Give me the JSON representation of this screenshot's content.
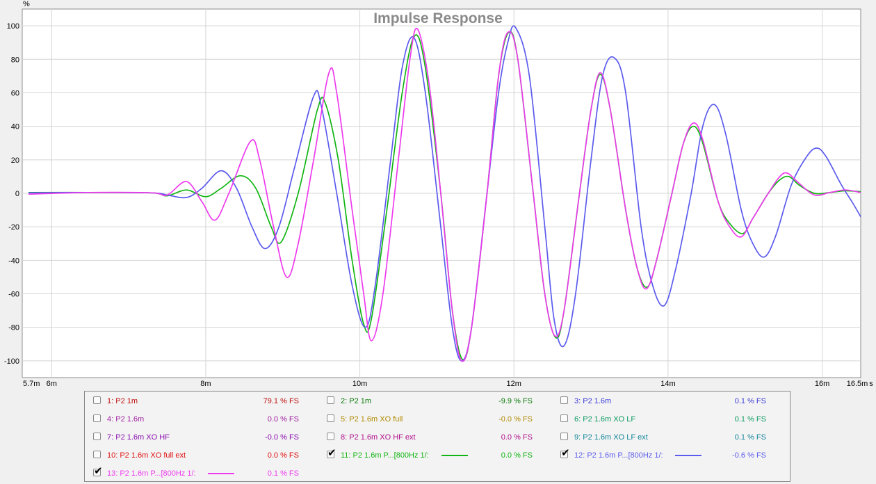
{
  "chart_data": {
    "type": "line",
    "title": "Impulse Response",
    "ylabel": "%",
    "xlabel": "s",
    "xlim": [
      5.7,
      16.5
    ],
    "ylim": [
      -110,
      110
    ],
    "grid": true,
    "y_ticks": [
      "100",
      "80",
      "60",
      "40",
      "20",
      "0",
      "-20",
      "-40",
      "-60",
      "-80",
      "-100"
    ],
    "x_ticks": [
      "5.7m",
      "6m",
      "8m",
      "10m",
      "12m",
      "14m",
      "16m",
      "16.5m"
    ],
    "x_unit_label": "s",
    "series": [
      {
        "name": "11: P2 1.6m P...[800Hz 1/:",
        "color": "#12b512",
        "points": [
          [
            5.7,
            0.5
          ],
          [
            6.5,
            0.5
          ],
          [
            7.3,
            0.3
          ],
          [
            7.5,
            -1.5
          ],
          [
            7.75,
            2
          ],
          [
            8.0,
            -2
          ],
          [
            8.2,
            3
          ],
          [
            8.45,
            10.5
          ],
          [
            8.65,
            3
          ],
          [
            8.85,
            -20
          ],
          [
            8.98,
            -29
          ],
          [
            9.2,
            0
          ],
          [
            9.45,
            50
          ],
          [
            9.55,
            54
          ],
          [
            9.72,
            20
          ],
          [
            9.9,
            -40
          ],
          [
            10.05,
            -78
          ],
          [
            10.15,
            -75
          ],
          [
            10.35,
            -10
          ],
          [
            10.55,
            60
          ],
          [
            10.71,
            94
          ],
          [
            10.85,
            75
          ],
          [
            11.05,
            0
          ],
          [
            11.2,
            -70
          ],
          [
            11.33,
            -99
          ],
          [
            11.45,
            -80
          ],
          [
            11.65,
            0
          ],
          [
            11.8,
            70
          ],
          [
            11.93,
            96
          ],
          [
            12.05,
            80
          ],
          [
            12.25,
            0
          ],
          [
            12.4,
            -60
          ],
          [
            12.54,
            -86
          ],
          [
            12.65,
            -70
          ],
          [
            12.85,
            0
          ],
          [
            13.0,
            50
          ],
          [
            13.12,
            71
          ],
          [
            13.25,
            50
          ],
          [
            13.45,
            -10
          ],
          [
            13.6,
            -45
          ],
          [
            13.73,
            -56
          ],
          [
            13.85,
            -40
          ],
          [
            14.05,
            0
          ],
          [
            14.2,
            30
          ],
          [
            14.33,
            40
          ],
          [
            14.45,
            30
          ],
          [
            14.65,
            -5
          ],
          [
            14.8,
            -18
          ],
          [
            14.97,
            -24
          ],
          [
            15.1,
            -15
          ],
          [
            15.3,
            0
          ],
          [
            15.45,
            8
          ],
          [
            15.57,
            10
          ],
          [
            15.7,
            5
          ],
          [
            15.9,
            0
          ],
          [
            16.1,
            0.5
          ],
          [
            16.3,
            1.5
          ],
          [
            16.5,
            1
          ]
        ]
      },
      {
        "name": "12: P2 1.6m P...[800Hz 1/:",
        "color": "#5b5bee",
        "points": [
          [
            5.7,
            0.3
          ],
          [
            6.5,
            0.5
          ],
          [
            7.3,
            0.3
          ],
          [
            7.5,
            -1
          ],
          [
            7.75,
            -2.5
          ],
          [
            7.95,
            3
          ],
          [
            8.2,
            13.5
          ],
          [
            8.4,
            3
          ],
          [
            8.6,
            -20
          ],
          [
            8.77,
            -33
          ],
          [
            8.95,
            -20
          ],
          [
            9.15,
            15
          ],
          [
            9.4,
            58
          ],
          [
            9.5,
            52
          ],
          [
            9.7,
            0
          ],
          [
            9.9,
            -55
          ],
          [
            10.07,
            -80
          ],
          [
            10.2,
            -55
          ],
          [
            10.4,
            20
          ],
          [
            10.55,
            75
          ],
          [
            10.7,
            93
          ],
          [
            10.85,
            60
          ],
          [
            11.05,
            -20
          ],
          [
            11.2,
            -80
          ],
          [
            11.32,
            -100
          ],
          [
            11.45,
            -80
          ],
          [
            11.65,
            0
          ],
          [
            11.8,
            60
          ],
          [
            11.92,
            90
          ],
          [
            12.02,
            99
          ],
          [
            12.2,
            70
          ],
          [
            12.4,
            -20
          ],
          [
            12.52,
            -75
          ],
          [
            12.65,
            -91
          ],
          [
            12.8,
            -60
          ],
          [
            13.0,
            20
          ],
          [
            13.15,
            70
          ],
          [
            13.3,
            81
          ],
          [
            13.45,
            60
          ],
          [
            13.65,
            -20
          ],
          [
            13.8,
            -55
          ],
          [
            13.95,
            -67
          ],
          [
            14.1,
            -45
          ],
          [
            14.3,
            0
          ],
          [
            14.45,
            40
          ],
          [
            14.6,
            53
          ],
          [
            14.75,
            35
          ],
          [
            14.95,
            -10
          ],
          [
            15.1,
            -30
          ],
          [
            15.25,
            -38
          ],
          [
            15.4,
            -25
          ],
          [
            15.6,
            5
          ],
          [
            15.8,
            22
          ],
          [
            15.93,
            27
          ],
          [
            16.05,
            22
          ],
          [
            16.25,
            5
          ],
          [
            16.4,
            -6
          ],
          [
            16.5,
            -14
          ]
        ]
      },
      {
        "name": "13: P2 1.6m P...[800Hz 1/:",
        "color": "#ee3aee",
        "points": [
          [
            5.7,
            -0.5
          ],
          [
            6.5,
            0.5
          ],
          [
            7.3,
            0.3
          ],
          [
            7.5,
            -1
          ],
          [
            7.75,
            7
          ],
          [
            7.95,
            -5
          ],
          [
            8.12,
            -16
          ],
          [
            8.3,
            0
          ],
          [
            8.58,
            31
          ],
          [
            8.7,
            20
          ],
          [
            8.88,
            -20
          ],
          [
            9.05,
            -50
          ],
          [
            9.2,
            -30
          ],
          [
            9.4,
            20
          ],
          [
            9.6,
            72
          ],
          [
            9.7,
            60
          ],
          [
            9.9,
            -10
          ],
          [
            10.05,
            -60
          ],
          [
            10.15,
            -88
          ],
          [
            10.3,
            -60
          ],
          [
            10.5,
            20
          ],
          [
            10.65,
            80
          ],
          [
            10.75,
            98
          ],
          [
            10.9,
            65
          ],
          [
            11.05,
            0
          ],
          [
            11.2,
            -70
          ],
          [
            11.32,
            -100
          ],
          [
            11.45,
            -80
          ],
          [
            11.65,
            0
          ],
          [
            11.8,
            70
          ],
          [
            11.92,
            96
          ],
          [
            12.05,
            80
          ],
          [
            12.25,
            0
          ],
          [
            12.4,
            -60
          ],
          [
            12.53,
            -85
          ],
          [
            12.65,
            -70
          ],
          [
            12.85,
            0
          ],
          [
            13.0,
            50
          ],
          [
            13.12,
            72
          ],
          [
            13.25,
            50
          ],
          [
            13.45,
            -10
          ],
          [
            13.6,
            -45
          ],
          [
            13.72,
            -57
          ],
          [
            13.85,
            -40
          ],
          [
            14.05,
            0
          ],
          [
            14.2,
            30
          ],
          [
            14.33,
            42
          ],
          [
            14.45,
            32
          ],
          [
            14.65,
            -5
          ],
          [
            14.8,
            -20
          ],
          [
            14.95,
            -26
          ],
          [
            15.1,
            -15
          ],
          [
            15.3,
            0
          ],
          [
            15.45,
            10
          ],
          [
            15.55,
            12
          ],
          [
            15.7,
            6
          ],
          [
            15.9,
            -1
          ],
          [
            16.1,
            0.5
          ],
          [
            16.3,
            2
          ],
          [
            16.5,
            0.5
          ]
        ]
      }
    ]
  },
  "legend": {
    "items": [
      {
        "label": "1: P2 1m",
        "value": "79.1 % FS",
        "color": "#c01010",
        "checked": false
      },
      {
        "label": "2: P2 1m",
        "value": "-9.9 % FS",
        "color": "#0b7a0b",
        "checked": false
      },
      {
        "label": "3: P2 1.6m",
        "value": "0.1 % FS",
        "color": "#3a3ad8",
        "checked": false
      },
      {
        "label": "4: P2 1.6m",
        "value": "0.0 % FS",
        "color": "#a020a0",
        "checked": false
      },
      {
        "label": "5: P2 1.6m XO full",
        "value": "-0.0 % FS",
        "color": "#b08a00",
        "checked": false
      },
      {
        "label": "6: P2 1.6m XO LF",
        "value": "0.1 % FS",
        "color": "#0b9a60",
        "checked": false
      },
      {
        "label": "7: P2 1.6m XO HF",
        "value": "-0.0 % FS",
        "color": "#8a10b0",
        "checked": false
      },
      {
        "label": "8: P2 1.6m XO HF ext",
        "value": "0.0 % FS",
        "color": "#b0108a",
        "checked": false
      },
      {
        "label": "9: P2 1.6m XO LF ext",
        "value": "0.1 % FS",
        "color": "#10859a",
        "checked": false
      },
      {
        "label": "10: P2 1.6m XO full ext",
        "value": "0.0 % FS",
        "color": "#e01010",
        "checked": false
      },
      {
        "label": "11: P2 1.6m P...[800Hz 1/:",
        "value": "0.0 % FS",
        "color": "#12b512",
        "checked": true
      },
      {
        "label": "12: P2 1.6m P...[800Hz 1/:",
        "value": "-0.6 % FS",
        "color": "#5b5bee",
        "checked": true
      },
      {
        "label": "13: P2 1.6m P...[800Hz 1/:",
        "value": "0.1 % FS",
        "color": "#ee3aee",
        "checked": true
      }
    ]
  }
}
